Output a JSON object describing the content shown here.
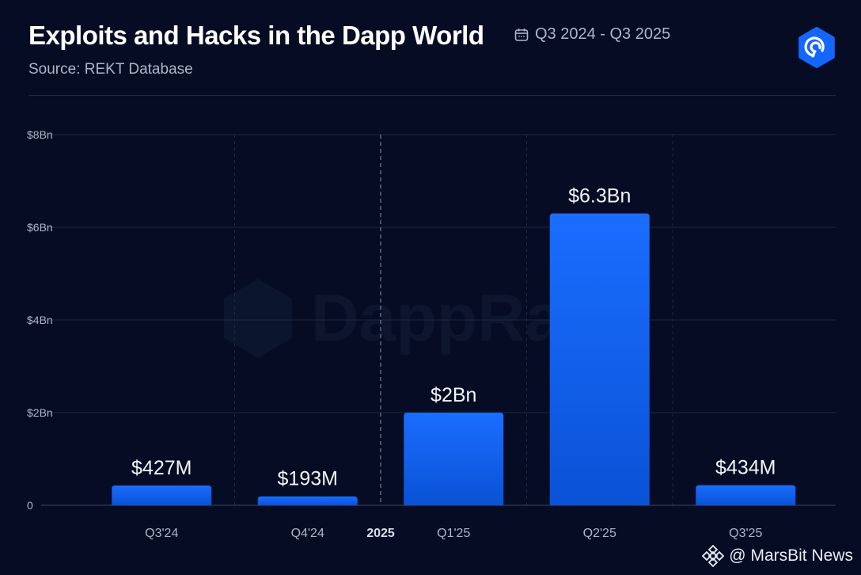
{
  "header": {
    "title": "Exploits and Hacks in the Dapp World",
    "date_range": "Q3 2024 - Q3 2025",
    "source": "Source: REKT Database"
  },
  "watermark": {
    "text": "DappRa"
  },
  "footer": {
    "at": "@",
    "label": "MarsBit News"
  },
  "colors": {
    "background": "#050c24",
    "bar_top": "#1a6dff",
    "bar_bottom": "#0a52d6",
    "grid": "#1c2744",
    "accent": "#1565ff"
  },
  "chart_data": {
    "type": "bar",
    "title": "Exploits and Hacks in the Dapp World",
    "categories": [
      "Q3'24",
      "Q4'24",
      "Q1'25",
      "Q2'25",
      "Q3'25"
    ],
    "values": [
      0.427,
      0.193,
      2.0,
      6.3,
      0.434
    ],
    "value_labels": [
      "$427M",
      "$193M",
      "$2Bn",
      "$6.3Bn",
      "$434M"
    ],
    "unit": "Bn USD",
    "ylim": [
      0,
      8
    ],
    "yticks": [
      0,
      2,
      4,
      6,
      8
    ],
    "ytick_labels": [
      "0",
      "$2Bn",
      "$4Bn",
      "$6Bn",
      "$8Bn"
    ],
    "year_divider": {
      "after_index": 1,
      "label": "2025"
    },
    "xlabel": "",
    "ylabel": "",
    "grid": true
  }
}
